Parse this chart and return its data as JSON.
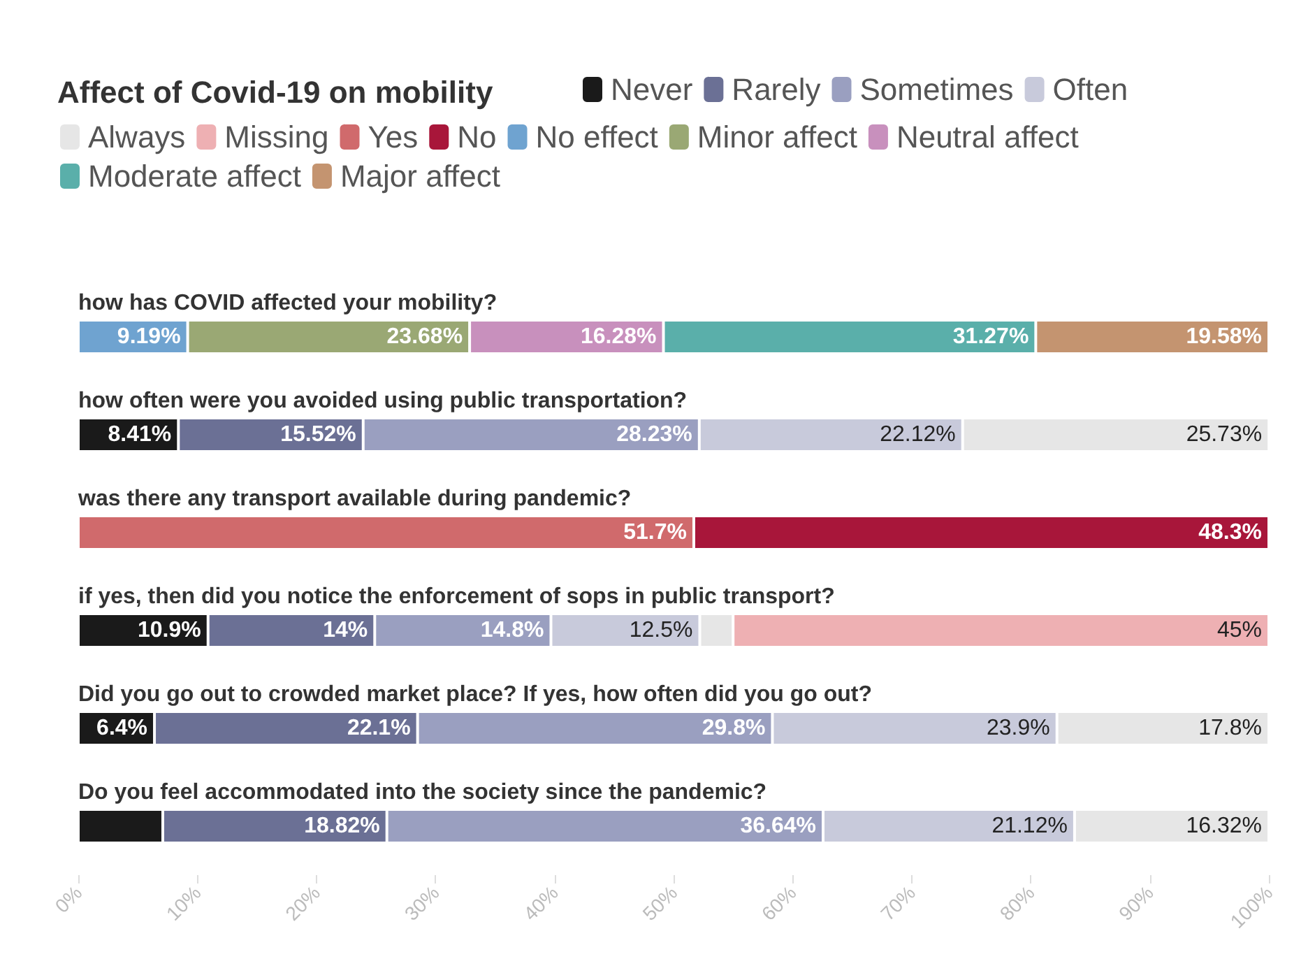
{
  "chart_data": {
    "type": "bar",
    "orientation": "horizontal",
    "stacked": true,
    "legend_title": "Affect of Covid-19 on mobility",
    "legend": "top",
    "grid": false,
    "categories": [
      "how has COVID affected your mobility?",
      "how often were you avoided using public transportation?",
      "was there any transport available during pandemic?",
      "if yes, then did you notice the enforcement of sops in public transport?",
      "Did you go out to crowded market place? If yes, how often did you go out?",
      "Do you feel accommodated into the society since the pandemic?"
    ],
    "xlim": [
      0,
      100
    ],
    "xticks": [
      {
        "value": 0,
        "label": "0%"
      },
      {
        "value": 10,
        "label": "10%"
      },
      {
        "value": 20,
        "label": "20%"
      },
      {
        "value": 30,
        "label": "30%"
      },
      {
        "value": 40,
        "label": "40%"
      },
      {
        "value": 50,
        "label": "50%"
      },
      {
        "value": 60,
        "label": "60%"
      },
      {
        "value": 70,
        "label": "70%"
      },
      {
        "value": 80,
        "label": "80%"
      },
      {
        "value": 90,
        "label": "90%"
      },
      {
        "value": 100,
        "label": "100%"
      }
    ],
    "series": [
      {
        "name": "Never",
        "color": "#1a1a1a",
        "values": [
          null,
          8.41,
          null,
          10.9,
          6.4,
          7.1
        ],
        "value_labels": [
          null,
          "8.41%",
          null,
          "10.9%",
          "6.4%",
          null
        ]
      },
      {
        "name": "Rarely",
        "color": "#6b7095",
        "values": [
          null,
          15.52,
          null,
          14,
          22.1,
          18.82
        ],
        "value_labels": [
          null,
          "15.52%",
          null,
          "14%",
          "22.1%",
          "18.82%"
        ]
      },
      {
        "name": "Sometimes",
        "color": "#9a9fc0",
        "values": [
          null,
          28.23,
          null,
          14.8,
          29.8,
          36.64
        ],
        "value_labels": [
          null,
          "28.23%",
          null,
          "14.8%",
          "29.8%",
          "36.64%"
        ]
      },
      {
        "name": "Often",
        "color": "#c8cadb",
        "values": [
          null,
          22.12,
          null,
          12.5,
          23.9,
          21.12
        ],
        "value_labels": [
          null,
          "22.12%",
          null,
          "12.5%",
          "23.9%",
          "21.12%"
        ]
      },
      {
        "name": "Always",
        "color": "#e6e6e6",
        "values": [
          null,
          25.73,
          null,
          2.8,
          17.8,
          16.32
        ],
        "value_labels": [
          null,
          "25.73%",
          null,
          null,
          "17.8%",
          "16.32%"
        ]
      },
      {
        "name": "Missing",
        "color": "#eeb0b3",
        "values": [
          null,
          null,
          null,
          45,
          null,
          null
        ],
        "value_labels": [
          null,
          null,
          null,
          "45%",
          null,
          null
        ]
      },
      {
        "name": "Yes",
        "color": "#d06a6c",
        "values": [
          null,
          null,
          51.7,
          null,
          null,
          null
        ],
        "value_labels": [
          null,
          null,
          "51.7%",
          null,
          null,
          null
        ]
      },
      {
        "name": "No",
        "color": "#a8163a",
        "values": [
          null,
          null,
          48.3,
          null,
          null,
          null
        ],
        "value_labels": [
          null,
          null,
          "48.3%",
          null,
          null,
          null
        ]
      },
      {
        "name": "No effect",
        "color": "#6fa3d0",
        "values": [
          9.19,
          null,
          null,
          null,
          null,
          null
        ],
        "value_labels": [
          "9.19%",
          null,
          null,
          null,
          null,
          null
        ]
      },
      {
        "name": "Minor affect",
        "color": "#9aa874",
        "values": [
          23.68,
          null,
          null,
          null,
          null,
          null
        ],
        "value_labels": [
          "23.68%",
          null,
          null,
          null,
          null,
          null
        ]
      },
      {
        "name": "Neutral affect",
        "color": "#c890bd",
        "values": [
          16.28,
          null,
          null,
          null,
          null,
          null
        ],
        "value_labels": [
          "16.28%",
          null,
          null,
          null,
          null,
          null
        ]
      },
      {
        "name": "Moderate affect",
        "color": "#5aafaa",
        "values": [
          31.27,
          null,
          null,
          null,
          null,
          null
        ],
        "value_labels": [
          "31.27%",
          null,
          null,
          null,
          null,
          null
        ]
      },
      {
        "name": "Major affect",
        "color": "#c49470",
        "values": [
          19.58,
          null,
          null,
          null,
          null,
          null
        ],
        "value_labels": [
          "19.58%",
          null,
          null,
          null,
          null,
          null
        ]
      }
    ]
  }
}
